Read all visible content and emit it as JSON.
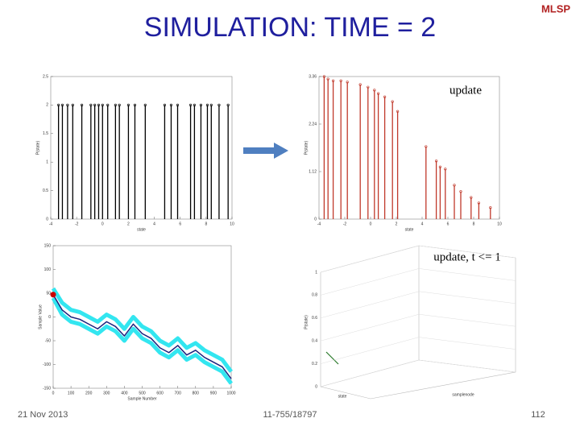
{
  "title": "SIMULATION: TIME = 2",
  "logo": "MLSP",
  "annotations": [
    "update",
    "update, t <= 1"
  ],
  "footer": {
    "date": "21  Nov 2013",
    "course": "11-755/18797",
    "page": "112"
  },
  "chart_data": [
    {
      "type": "stem",
      "color": "#000000",
      "xlabel": "state",
      "ylabel": "P(state)",
      "x": [
        -3.4,
        -3.1,
        -2.7,
        -2.3,
        -1.6,
        -0.9,
        -0.6,
        -0.3,
        0.0,
        0.4,
        1.0,
        1.3,
        2.0,
        2.5,
        3.3,
        4.8,
        5.3,
        5.8,
        6.8,
        7.1,
        7.6,
        8.1,
        8.4,
        9.0,
        9.7
      ],
      "values": [
        2,
        2,
        2,
        2,
        2,
        2,
        2,
        2,
        2,
        2,
        2,
        2,
        2,
        2,
        2,
        2,
        2,
        2,
        2,
        2,
        2,
        2,
        2,
        2,
        2
      ],
      "xlim": [
        -4,
        10
      ],
      "ylim": [
        0,
        2.5
      ],
      "xticks": [
        -4,
        -2,
        0,
        2,
        4,
        6,
        8,
        10
      ],
      "yticks": [
        0,
        0.5,
        1,
        1.5,
        2,
        2.5
      ]
    },
    {
      "type": "stem",
      "color": "#c0392b",
      "xlabel": "state",
      "ylabel": "P(state)",
      "x": [
        -3.6,
        -3.3,
        -2.9,
        -2.3,
        -1.8,
        -0.8,
        -0.2,
        0.3,
        0.6,
        1.1,
        1.7,
        2.1,
        4.3,
        5.1,
        5.4,
        5.8,
        6.5,
        7.0,
        7.8,
        8.4,
        9.3
      ],
      "values": [
        3.36,
        3.3,
        3.26,
        3.26,
        3.23,
        3.17,
        3.11,
        3.04,
        2.96,
        2.88,
        2.77,
        2.54,
        1.71,
        1.37,
        1.23,
        1.18,
        0.8,
        0.65,
        0.51,
        0.38,
        0.27
      ],
      "xlim": [
        -4,
        10
      ],
      "ylim": [
        0,
        3.36
      ],
      "xticks": [
        -4,
        -2,
        0,
        2,
        4,
        6,
        8,
        10
      ],
      "yticks": [
        0,
        1.12,
        2.24,
        3.36
      ]
    },
    {
      "type": "line",
      "xlabel": "Sample Number",
      "ylabel": "Sample Value",
      "x": [
        0,
        50,
        100,
        150,
        200,
        250,
        300,
        350,
        400,
        450,
        500,
        550,
        600,
        650,
        700,
        750,
        800,
        850,
        900,
        950,
        1000
      ],
      "series": [
        {
          "color": "#33e6f0",
          "values": [
            60,
            30,
            15,
            10,
            0,
            -10,
            5,
            -5,
            -25,
            0,
            -20,
            -30,
            -50,
            -60,
            -45,
            -65,
            -55,
            -70,
            -80,
            -90,
            -115
          ]
        },
        {
          "color": "#33e6f0",
          "values": [
            40,
            5,
            -10,
            -15,
            -25,
            -35,
            -20,
            -30,
            -50,
            -25,
            -45,
            -55,
            -75,
            -85,
            -70,
            -90,
            -80,
            -95,
            -105,
            -115,
            -140
          ]
        },
        {
          "color": "#1a237e",
          "values": [
            47,
            15,
            0,
            -5,
            -15,
            -25,
            -10,
            -20,
            -40,
            -15,
            -35,
            -45,
            -65,
            -75,
            -60,
            -80,
            -70,
            -85,
            -95,
            -105,
            -130
          ]
        }
      ],
      "marker": {
        "x": 0,
        "y": 47,
        "color": "#cc0000"
      },
      "xlim": [
        0,
        1000
      ],
      "ylim": [
        -150,
        150
      ],
      "xticks": [
        0,
        100,
        200,
        300,
        400,
        500,
        600,
        700,
        800,
        900,
        1000
      ],
      "yticks": [
        -150,
        -100,
        -50,
        0,
        50,
        100,
        150
      ]
    },
    {
      "type": "surface3d",
      "xlabel": "samplenode",
      "ylabel": "state",
      "zlabel": "P(state)",
      "zlim": [
        0,
        1
      ],
      "zticks": [
        0,
        0.2,
        0.4,
        0.6,
        0.8,
        1
      ]
    }
  ]
}
